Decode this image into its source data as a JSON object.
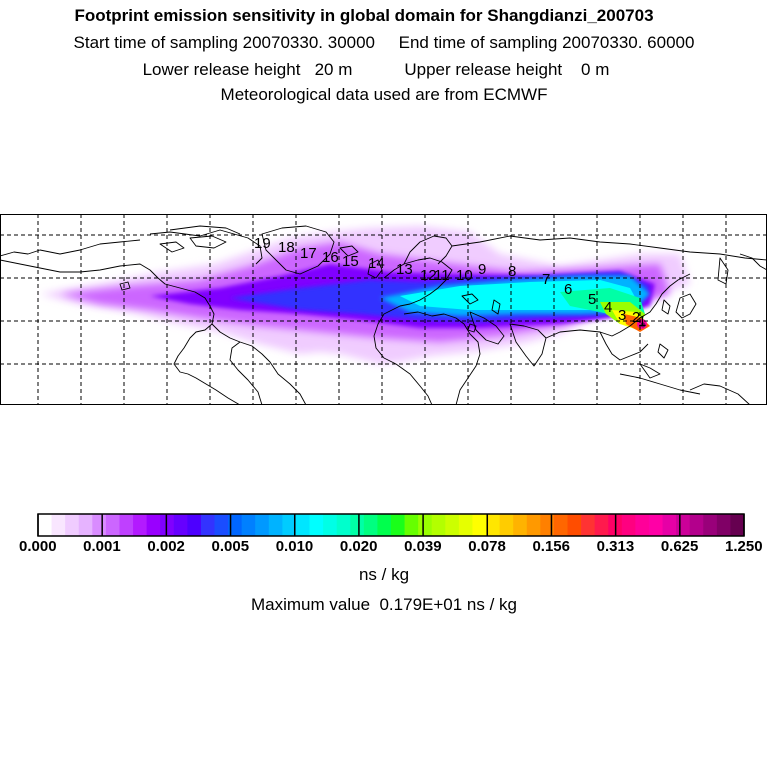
{
  "header": {
    "title": "Footprint emission sensitivity in global domain for Shangdianzi_200703",
    "line2": "Start time of sampling 20070330. 30000     End time of sampling 20070330. 60000",
    "line3": "Lower release height   20 m           Upper release height    0 m",
    "line4": "Meteorological data used are from ECMWF"
  },
  "trajectory_labels": [
    "1",
    "2",
    "3",
    "4",
    "5",
    "6",
    "7",
    "8",
    "9",
    "10",
    "11",
    "12",
    "13",
    "14",
    "15",
    "16",
    "17",
    "18",
    "19"
  ],
  "colorbar": {
    "tick_labels": [
      "0.000",
      "0.001",
      "0.002",
      "0.005",
      "0.010",
      "0.020",
      "0.039",
      "0.078",
      "0.156",
      "0.313",
      "0.625",
      "1.250"
    ],
    "colors": [
      "#ffffff",
      "#f9e6ff",
      "#f0ccff",
      "#e6b3ff",
      "#d98cff",
      "#cc66ff",
      "#bf40ff",
      "#b31aff",
      "#9900ff",
      "#8000ff",
      "#6600ff",
      "#4d00ff",
      "#3333ff",
      "#1a4dff",
      "#0066ff",
      "#0080ff",
      "#0099ff",
      "#00b3ff",
      "#00ccff",
      "#00e6ff",
      "#00ffff",
      "#00ffe6",
      "#00ffcc",
      "#00ffa6",
      "#00ff80",
      "#00ff4d",
      "#1aff1a",
      "#66ff00",
      "#99ff00",
      "#b3ff00",
      "#ccff00",
      "#e6ff00",
      "#ffff00",
      "#ffe600",
      "#ffcc00",
      "#ffb300",
      "#ff9900",
      "#ff8000",
      "#ff6600",
      "#ff4d00",
      "#ff3333",
      "#ff1a4d",
      "#ff0066",
      "#ff0080",
      "#ff0099",
      "#ff00a6",
      "#e600a6",
      "#cc0099",
      "#b3008c",
      "#99007a",
      "#800066",
      "#660050"
    ],
    "unit": "ns / kg",
    "max_value_text": "Maximum value  0.179E+01 ns / kg"
  }
}
